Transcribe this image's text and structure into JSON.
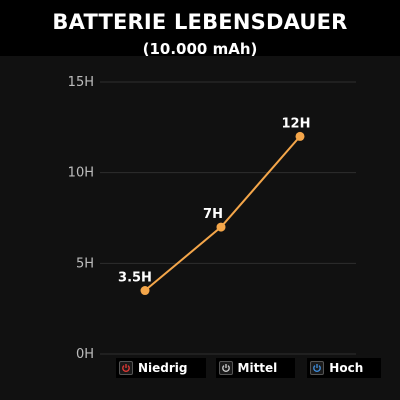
{
  "header": {
    "title": "BATTERIE LEBENSDAUER",
    "subtitle": "(10.000 mAh)"
  },
  "chart_data": {
    "type": "line",
    "categories": [
      "Niedrig",
      "Mittel",
      "Hoch"
    ],
    "values": [
      3.5,
      7,
      12
    ],
    "data_labels": [
      "3.5H",
      "7H",
      "12H"
    ],
    "yticks": [
      {
        "value": 0,
        "label": "0H"
      },
      {
        "value": 5,
        "label": "5H"
      },
      {
        "value": 10,
        "label": "10H"
      },
      {
        "value": 15,
        "label": "15H"
      }
    ],
    "ylim": [
      0,
      15
    ],
    "grid": true,
    "line_color": "#f4a64a",
    "legend_position": "bottom"
  },
  "legend": {
    "items": [
      {
        "label": "Niedrig",
        "icon": "power-icon",
        "color": "#e53935"
      },
      {
        "label": "Mittel",
        "icon": "power-icon",
        "color": "#cfcfcf"
      },
      {
        "label": "Hoch",
        "icon": "power-icon",
        "color": "#3f8fe0"
      }
    ]
  }
}
